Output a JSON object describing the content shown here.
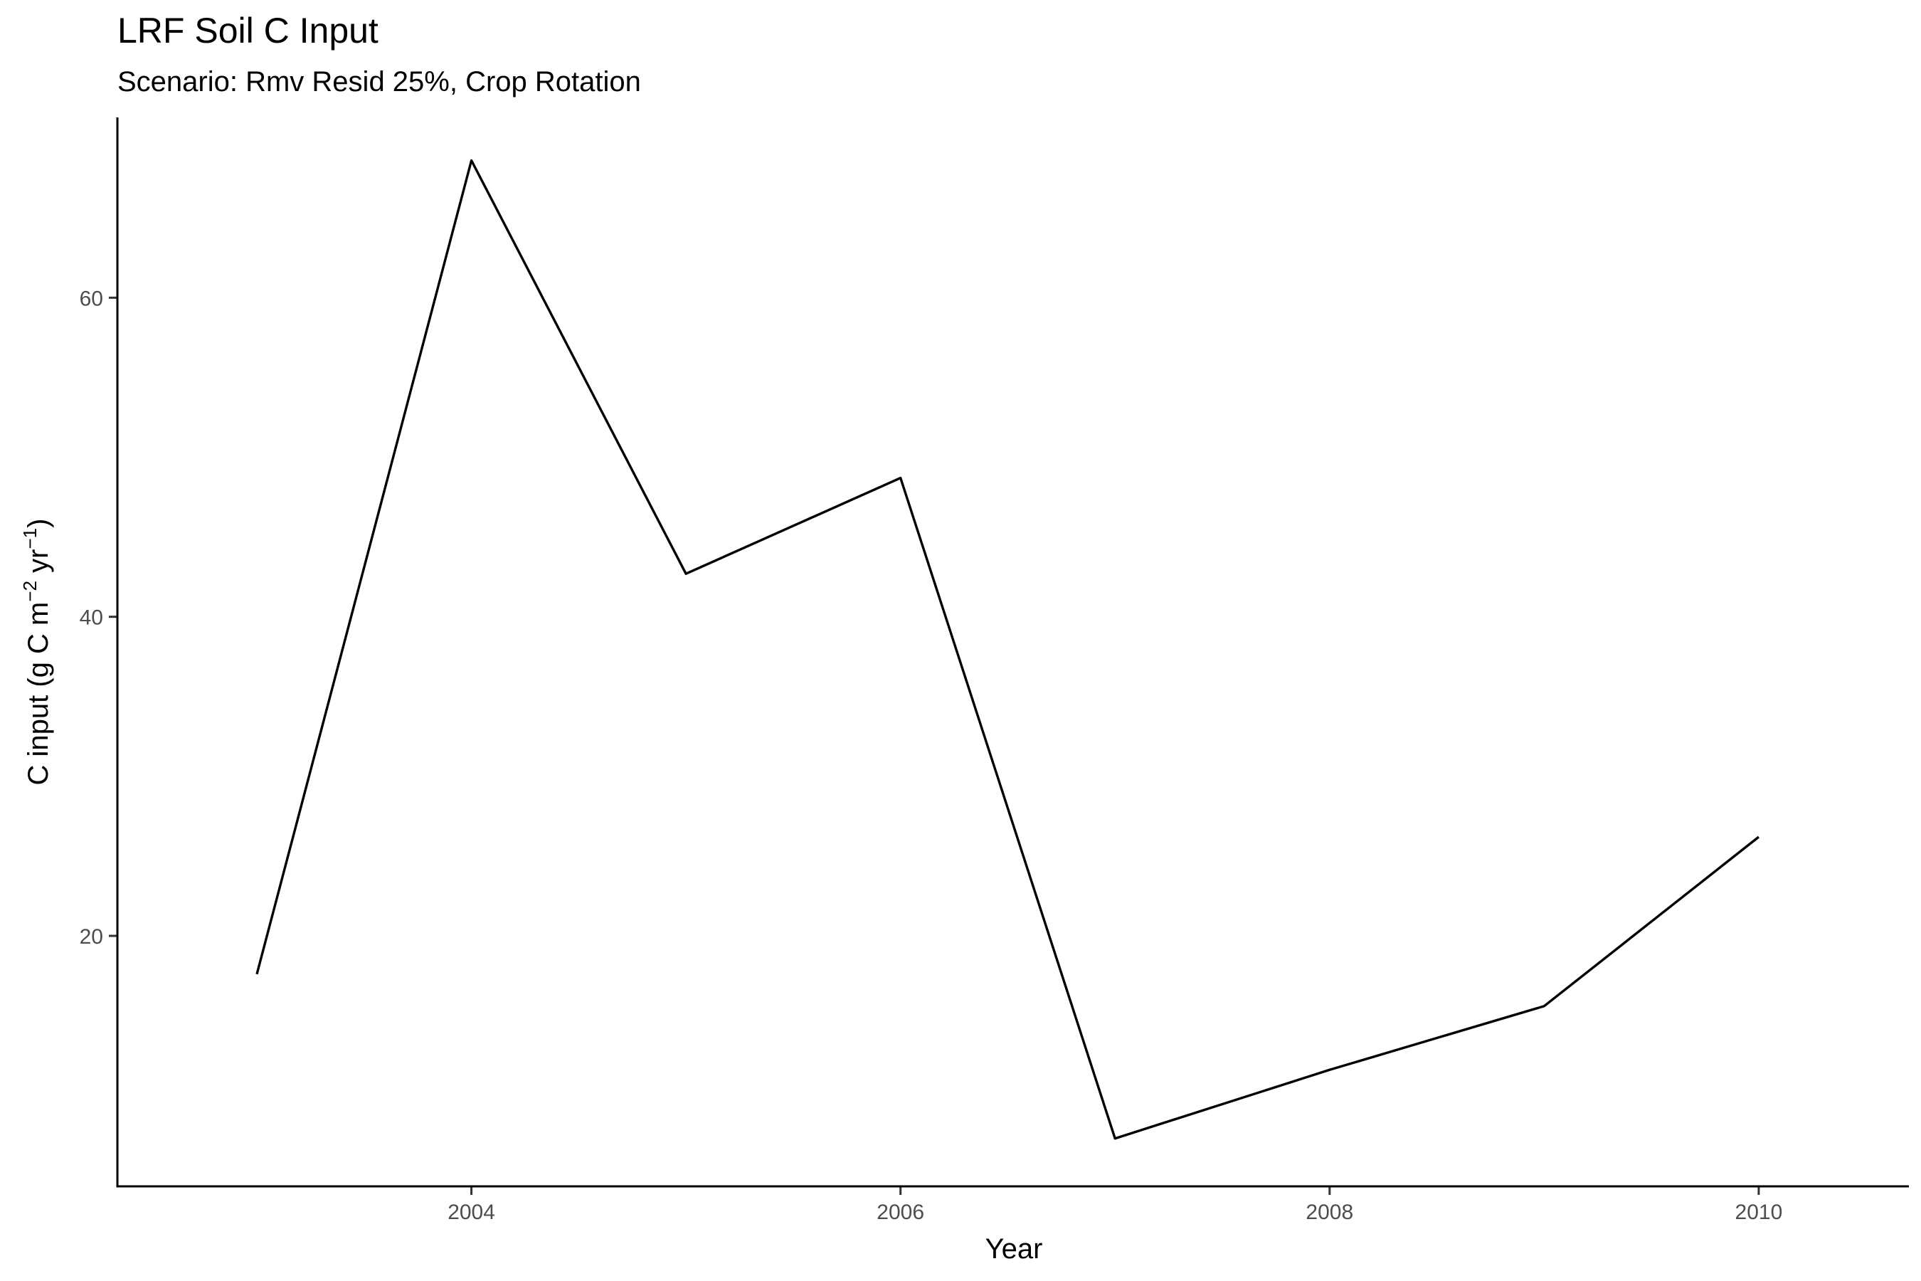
{
  "chart_data": {
    "type": "line",
    "title": "LRF Soil C Input",
    "subtitle": "Scenario: Rmv Resid 25%, Crop Rotation",
    "xlabel": "Year",
    "ylabel": "C input (g C m^-2 yr^-1)",
    "ylabel_parts": {
      "pre": "C input (g C m",
      "sup1": "−2",
      "mid": " yr",
      "sup2": "−1",
      "post": ")"
    },
    "x": [
      2003,
      2004,
      2005,
      2006,
      2007,
      2008,
      2009,
      2010
    ],
    "values": [
      17.6,
      68.6,
      42.7,
      48.7,
      7.3,
      11.6,
      15.6,
      26.2
    ],
    "xlim": [
      2002.35,
      2010.7
    ],
    "ylim": [
      4.3,
      71.3
    ],
    "xticks": [
      "2004",
      "2006",
      "2008",
      "2010"
    ],
    "yticks": [
      "20",
      "40",
      "60"
    ],
    "grid": false,
    "legend": "none",
    "line_color": "#000000"
  }
}
